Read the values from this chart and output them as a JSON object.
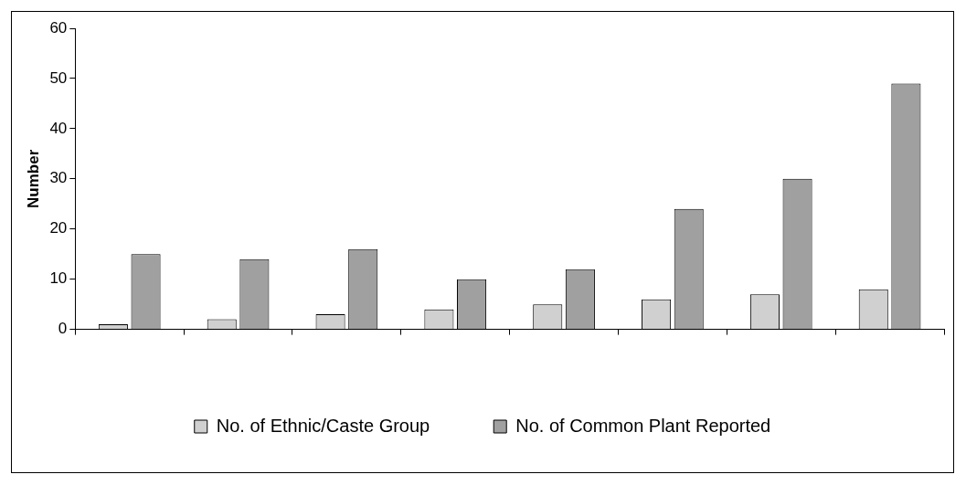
{
  "chart_data": {
    "type": "bar",
    "ylabel": "Number",
    "categories": [
      null,
      null,
      null,
      null,
      null,
      null,
      null,
      null
    ],
    "series": [
      {
        "name": "No. of Ethnic/Caste Group",
        "color": "#d0d0d0",
        "values": [
          1,
          2,
          3,
          4,
          5,
          6,
          7,
          8
        ]
      },
      {
        "name": "No. of Common Plant Reported",
        "color": "#a0a0a0",
        "values": [
          15,
          14,
          16,
          10,
          12,
          24,
          30,
          49
        ]
      }
    ],
    "ylim": [
      0,
      60
    ],
    "yticks": [
      0,
      10,
      20,
      30,
      40,
      50,
      60
    ],
    "grid": false,
    "legend": "bottom"
  }
}
